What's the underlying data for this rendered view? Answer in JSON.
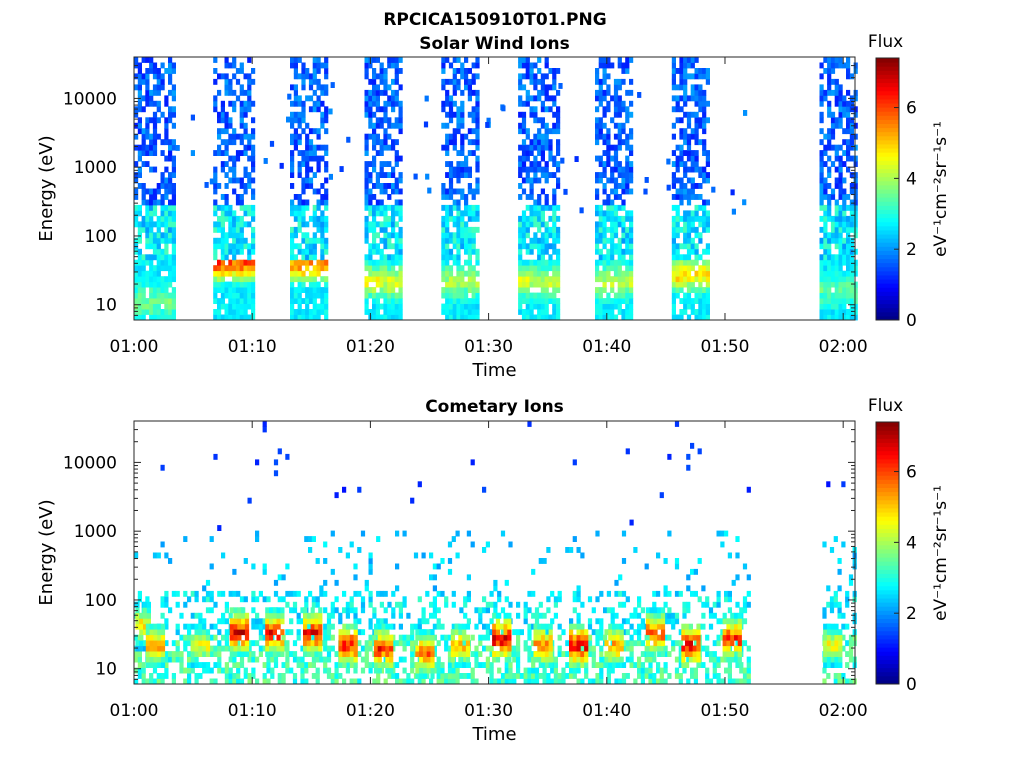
{
  "figure_title": "RPCICA150910T01.PNG",
  "chart_data": [
    {
      "type": "heatmap",
      "title": "Solar Wind Ions",
      "xlabel": "Time",
      "ylabel": "Energy (eV)",
      "x_ticks": [
        "01:00",
        "01:10",
        "01:20",
        "01:30",
        "01:40",
        "01:50",
        "02:00"
      ],
      "xlim_minutes": [
        0,
        61
      ],
      "y_scale": "log",
      "y_ticks": [
        {
          "value": 10,
          "label": "10"
        },
        {
          "value": 100,
          "label": "100"
        },
        {
          "value": 1000,
          "label": "1000"
        },
        {
          "value": 10000,
          "label": "10000"
        }
      ],
      "ylim": [
        6,
        40000
      ],
      "colorbar": {
        "title": "Flux",
        "label": "eV⁻¹cm⁻²sr⁻¹s⁻¹",
        "range": [
          0,
          7.4
        ],
        "ticks": [
          {
            "value": 0,
            "label": "0"
          },
          {
            "value": 2,
            "label": "2"
          },
          {
            "value": 4,
            "label": "4"
          },
          {
            "value": 6,
            "label": "6"
          }
        ],
        "colormap": "jet"
      },
      "data_gaps_minutes": [
        [
          52,
          58
        ]
      ],
      "scans": [
        {
          "start": 0.0,
          "end": 3.5,
          "peak_energy": 10,
          "peak_flux": 3.4
        },
        {
          "start": 6.7,
          "end": 10.0,
          "peak_energy": 35,
          "peak_flux": 6.0
        },
        {
          "start": 13.2,
          "end": 16.3,
          "peak_energy": 35,
          "peak_flux": 5.7
        },
        {
          "start": 19.5,
          "end": 22.7,
          "peak_energy": 20,
          "peak_flux": 4.4
        },
        {
          "start": 26.0,
          "end": 29.2,
          "peak_energy": 20,
          "peak_flux": 3.9
        },
        {
          "start": 32.5,
          "end": 35.8,
          "peak_energy": 20,
          "peak_flux": 4.1
        },
        {
          "start": 39.0,
          "end": 42.2,
          "peak_energy": 20,
          "peak_flux": 4.0
        },
        {
          "start": 45.5,
          "end": 48.7,
          "peak_energy": 25,
          "peak_flux": 4.9
        },
        {
          "start": 58.0,
          "end": 61.0,
          "peak_energy": 15,
          "peak_flux": 3.2
        }
      ]
    },
    {
      "type": "heatmap",
      "title": "Cometary Ions",
      "xlabel": "Time",
      "ylabel": "Energy (eV)",
      "x_ticks": [
        "01:00",
        "01:10",
        "01:20",
        "01:30",
        "01:40",
        "01:50",
        "02:00"
      ],
      "xlim_minutes": [
        0,
        61
      ],
      "y_scale": "log",
      "y_ticks": [
        {
          "value": 10,
          "label": "10"
        },
        {
          "value": 100,
          "label": "100"
        },
        {
          "value": 1000,
          "label": "1000"
        },
        {
          "value": 10000,
          "label": "10000"
        }
      ],
      "ylim": [
        6,
        40000
      ],
      "colorbar": {
        "title": "Flux",
        "label": "eV⁻¹cm⁻²sr⁻¹s⁻¹",
        "range": [
          0,
          7.4
        ],
        "ticks": [
          {
            "value": 0,
            "label": "0"
          },
          {
            "value": 2,
            "label": "2"
          },
          {
            "value": 4,
            "label": "4"
          },
          {
            "value": 6,
            "label": "6"
          }
        ],
        "colormap": "jet"
      },
      "data_gaps_minutes": [
        [
          52,
          58
        ]
      ],
      "bursts": [
        {
          "time": 0.5,
          "energy": 40,
          "flux": 5.2
        },
        {
          "time": 1.7,
          "energy": 20,
          "flux": 5.6
        },
        {
          "time": 5.5,
          "energy": 20,
          "flux": 5.0
        },
        {
          "time": 8.8,
          "energy": 32,
          "flux": 7.0
        },
        {
          "time": 11.8,
          "energy": 30,
          "flux": 6.8
        },
        {
          "time": 15.0,
          "energy": 30,
          "flux": 6.9
        },
        {
          "time": 18.0,
          "energy": 20,
          "flux": 6.8
        },
        {
          "time": 21.0,
          "energy": 18,
          "flux": 6.6
        },
        {
          "time": 24.5,
          "energy": 15,
          "flux": 6.2
        },
        {
          "time": 27.5,
          "energy": 20,
          "flux": 5.6
        },
        {
          "time": 31.0,
          "energy": 25,
          "flux": 7.1
        },
        {
          "time": 34.5,
          "energy": 20,
          "flux": 6.0
        },
        {
          "time": 37.5,
          "energy": 20,
          "flux": 7.1
        },
        {
          "time": 40.5,
          "energy": 20,
          "flux": 5.8
        },
        {
          "time": 44.0,
          "energy": 30,
          "flux": 6.4
        },
        {
          "time": 47.0,
          "energy": 20,
          "flux": 6.9
        },
        {
          "time": 50.5,
          "energy": 25,
          "flux": 6.6
        },
        {
          "time": 59.0,
          "energy": 20,
          "flux": 5.0
        }
      ]
    }
  ]
}
